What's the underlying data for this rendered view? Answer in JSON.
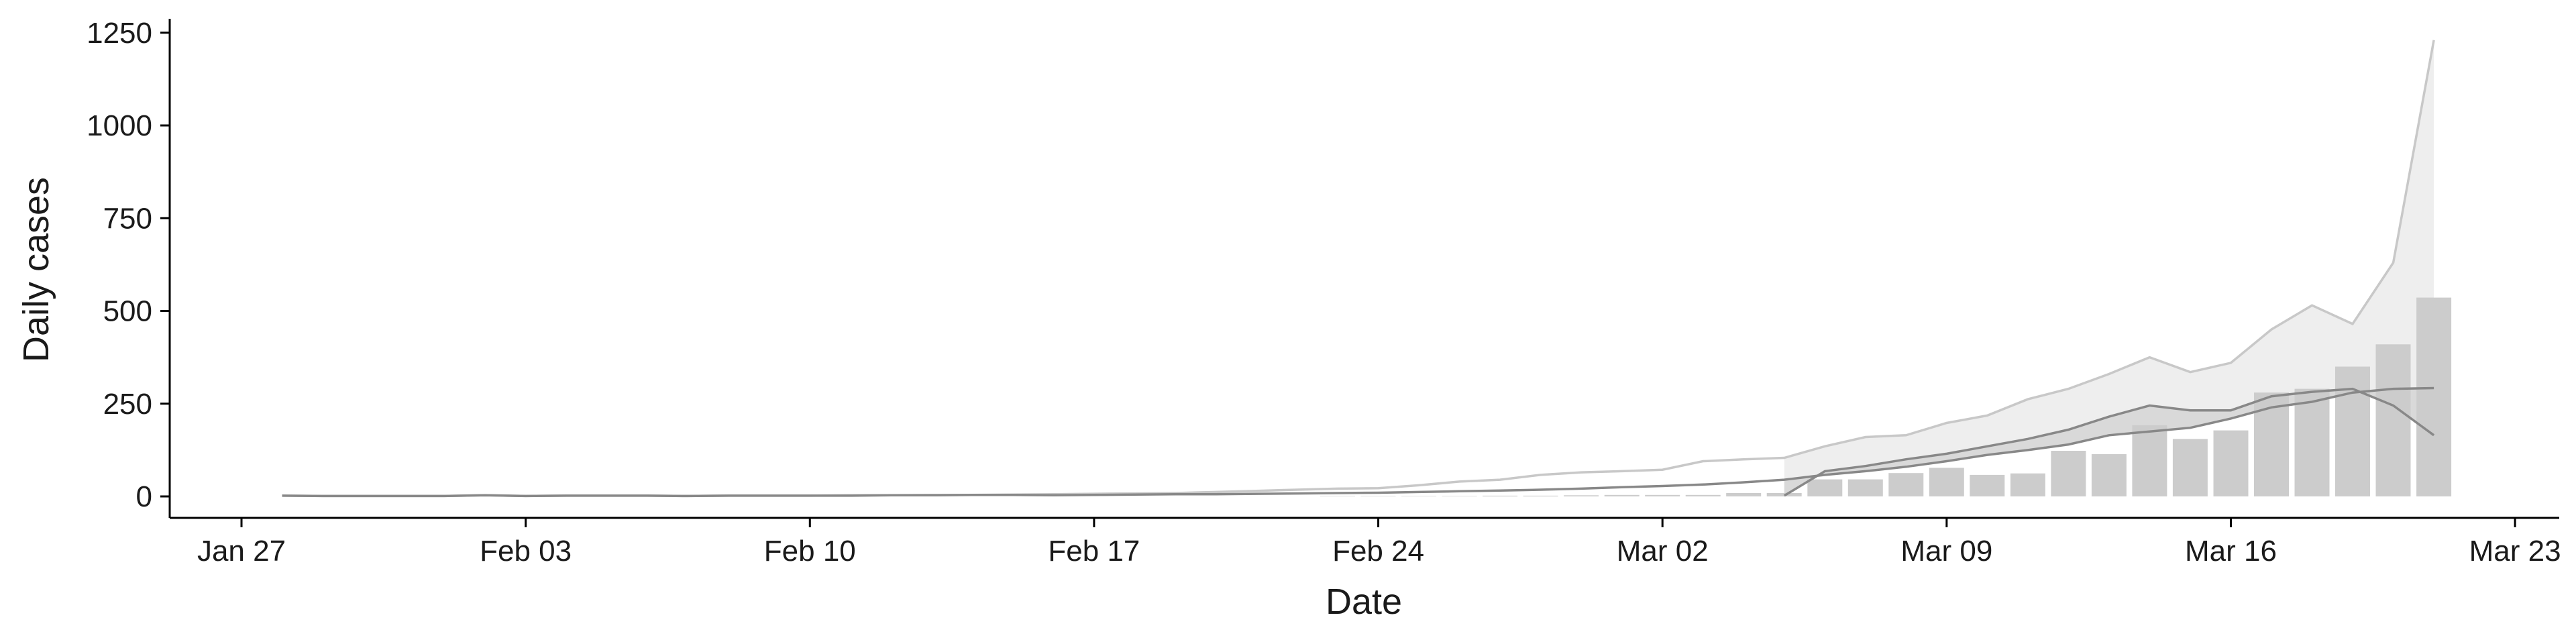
{
  "chart_data": {
    "type": "bar",
    "title": "",
    "xlabel": "Date",
    "ylabel": "Daily cases",
    "x_ticks": [
      "Jan 27",
      "Feb 03",
      "Feb 10",
      "Feb 17",
      "Feb 24",
      "Mar 02",
      "Mar 09",
      "Mar 16",
      "Mar 23"
    ],
    "y_ticks": [
      "0",
      "250",
      "500",
      "750",
      "1000",
      "1250"
    ],
    "x_range": [
      "2020-01-27",
      "2020-03-23"
    ],
    "ylim": [
      0,
      1300
    ],
    "grid": false,
    "colors": {
      "bars": "#cccccc",
      "ribbon_inner": "#d9d9d9",
      "ribbon_outer": "#eeeeee",
      "line_mid": "#888888",
      "line_outer": "#c8c8c8",
      "axis": "#000000"
    },
    "bars": {
      "dates": [
        "2020-02-23",
        "2020-02-24",
        "2020-02-25",
        "2020-02-26",
        "2020-02-27",
        "2020-02-28",
        "2020-02-29",
        "2020-03-01",
        "2020-03-02",
        "2020-03-03",
        "2020-03-04",
        "2020-03-05",
        "2020-03-06",
        "2020-03-07",
        "2020-03-08",
        "2020-03-09",
        "2020-03-10",
        "2020-03-11",
        "2020-03-12",
        "2020-03-13",
        "2020-03-14",
        "2020-03-15",
        "2020-03-16",
        "2020-03-17",
        "2020-03-18",
        "2020-03-19",
        "2020-03-20",
        "2020-03-21"
      ],
      "values": [
        1,
        1,
        1,
        1,
        2,
        2,
        3,
        4,
        4,
        4,
        9,
        9,
        46,
        46,
        63,
        77,
        58,
        62,
        123,
        114,
        192,
        155,
        178,
        280,
        290,
        350,
        410,
        536
      ]
    },
    "series": [
      {
        "kind": "line",
        "dates": [
          "2020-01-28",
          "2020-01-29",
          "2020-01-30",
          "2020-01-31",
          "2020-02-01",
          "2020-02-02",
          "2020-02-03",
          "2020-02-04",
          "2020-02-05",
          "2020-02-06",
          "2020-02-07",
          "2020-02-08",
          "2020-02-09",
          "2020-02-10",
          "2020-02-11",
          "2020-02-12",
          "2020-02-13",
          "2020-02-14",
          "2020-02-15",
          "2020-02-16",
          "2020-02-17",
          "2020-02-18",
          "2020-02-19",
          "2020-02-20",
          "2020-02-21",
          "2020-02-22",
          "2020-02-23",
          "2020-02-24",
          "2020-02-25",
          "2020-02-26",
          "2020-02-27",
          "2020-02-28",
          "2020-02-29",
          "2020-03-01",
          "2020-03-02",
          "2020-03-03",
          "2020-03-04",
          "2020-03-05",
          "2020-03-06",
          "2020-03-07",
          "2020-03-08",
          "2020-03-09",
          "2020-03-10",
          "2020-03-11",
          "2020-03-12",
          "2020-03-13",
          "2020-03-14",
          "2020-03-15",
          "2020-03-16",
          "2020-03-17",
          "2020-03-18",
          "2020-03-19",
          "2020-03-20",
          "2020-03-21"
        ],
        "values": [
          2,
          1,
          1,
          1,
          1,
          3,
          1,
          2,
          2,
          2,
          1,
          2,
          2,
          2,
          2,
          3,
          3,
          4,
          4,
          3,
          4,
          5,
          6,
          6,
          7,
          8,
          9,
          10,
          12,
          14,
          16,
          18,
          21,
          25,
          28,
          32,
          38,
          45,
          58,
          68,
          80,
          95,
          112,
          125,
          140,
          165,
          175,
          185,
          210,
          240,
          255,
          280,
          290,
          292
        ]
      },
      {
        "kind": "line",
        "dates": [
          "2020-01-28",
          "2020-01-29",
          "2020-01-30",
          "2020-01-31",
          "2020-02-01",
          "2020-02-02",
          "2020-02-03",
          "2020-02-04",
          "2020-02-05",
          "2020-02-06",
          "2020-02-07",
          "2020-02-08",
          "2020-02-09",
          "2020-02-10",
          "2020-02-11",
          "2020-02-12",
          "2020-02-13",
          "2020-02-14",
          "2020-02-15",
          "2020-02-16",
          "2020-02-17",
          "2020-02-18",
          "2020-02-19",
          "2020-02-20",
          "2020-02-21",
          "2020-02-22",
          "2020-02-23",
          "2020-02-24",
          "2020-02-25",
          "2020-02-26",
          "2020-02-27",
          "2020-02-28",
          "2020-02-29",
          "2020-03-01",
          "2020-03-02",
          "2020-03-03",
          "2020-03-04",
          "2020-03-05",
          "2020-03-06",
          "2020-03-07",
          "2020-03-08",
          "2020-03-09",
          "2020-03-10",
          "2020-03-11",
          "2020-03-12",
          "2020-03-13",
          "2020-03-14",
          "2020-03-15",
          "2020-03-16",
          "2020-03-17",
          "2020-03-18",
          "2020-03-19",
          "2020-03-20",
          "2020-03-21"
        ],
        "values": [
          2,
          1,
          1,
          1,
          1,
          3,
          1,
          2,
          2,
          2,
          1,
          2,
          2,
          2,
          3,
          3,
          4,
          4,
          5,
          6,
          7,
          8,
          9,
          12,
          15,
          18,
          21,
          22,
          30,
          40,
          45,
          58,
          65,
          68,
          72,
          95,
          100,
          104,
          135,
          160,
          165,
          198,
          218,
          262,
          290,
          330,
          375,
          335,
          360,
          450,
          515,
          465,
          630,
          1230
        ]
      },
      {
        "kind": "line",
        "dates": [
          "2020-03-05",
          "2020-03-06",
          "2020-03-07",
          "2020-03-08",
          "2020-03-09",
          "2020-03-10",
          "2020-03-11",
          "2020-03-12",
          "2020-03-13",
          "2020-03-14",
          "2020-03-15",
          "2020-03-16",
          "2020-03-17",
          "2020-03-18",
          "2020-03-19",
          "2020-03-20",
          "2020-03-21"
        ],
        "values": [
          2,
          68,
          82,
          100,
          115,
          135,
          155,
          180,
          215,
          245,
          232,
          232,
          270,
          282,
          290,
          245,
          165
        ]
      }
    ]
  }
}
